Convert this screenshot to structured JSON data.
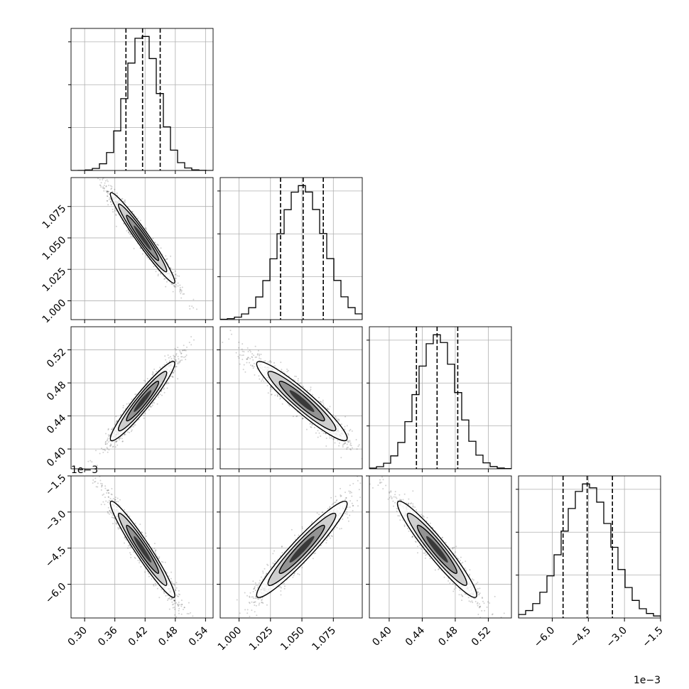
{
  "chart_data": {
    "type": "corner",
    "parameters": [
      {
        "ticks": [
          0.3,
          0.36,
          0.42,
          0.48,
          0.54
        ],
        "tick_labels": [
          "0.30",
          "0.36",
          "0.42",
          "0.48",
          "0.54"
        ],
        "range": [
          0.273,
          0.555
        ],
        "mean": 0.415,
        "sd": 0.032,
        "quantiles": [
          0.382,
          0.415,
          0.45
        ],
        "scale_label": ""
      },
      {
        "ticks": [
          1.0,
          1.025,
          1.05,
          1.075
        ],
        "tick_labels": [
          "1.000",
          "1.025",
          "1.050",
          "1.075"
        ],
        "range": [
          0.985,
          1.098
        ],
        "mean": 1.05,
        "sd": 0.018,
        "quantiles": [
          1.033,
          1.051,
          1.067
        ],
        "scale_label": ""
      },
      {
        "ticks": [
          0.4,
          0.44,
          0.48,
          0.52
        ],
        "tick_labels": [
          "0.40",
          "0.44",
          "0.48",
          "0.52"
        ],
        "range": [
          0.376,
          0.548
        ],
        "mean": 0.458,
        "sd": 0.024,
        "quantiles": [
          0.433,
          0.458,
          0.483
        ],
        "scale_label": ""
      },
      {
        "ticks": [
          -6.0,
          -4.5,
          -3.0,
          -1.5
        ],
        "tick_labels": [
          "−6.0",
          "−4.5",
          "−3.0",
          "−1.5"
        ],
        "range": [
          -7.4,
          -1.5
        ],
        "mean": -4.55,
        "sd": 1.0,
        "quantiles": [
          -5.55,
          -4.55,
          -3.5
        ],
        "scale_label": "1e−3"
      }
    ],
    "correlations": [
      [
        0,
        1,
        -0.97
      ],
      [
        0,
        2,
        0.95
      ],
      [
        0,
        3,
        -0.96
      ],
      [
        1,
        2,
        -0.94
      ],
      [
        1,
        3,
        0.95
      ],
      [
        2,
        3,
        -0.95
      ]
    ],
    "histogram_bins": 20,
    "grid": true,
    "title": "",
    "legend": "none"
  }
}
